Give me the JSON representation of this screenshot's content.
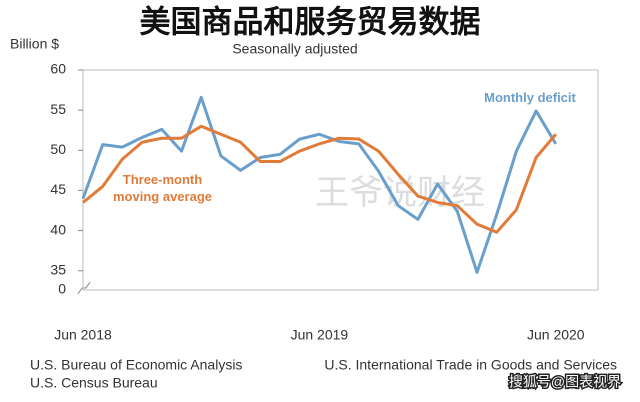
{
  "chart_data": {
    "type": "line",
    "title": "美国商品和服务贸易数据",
    "subtitle": "Seasonally adjusted",
    "y_label": "Billion $",
    "axis_break": {
      "label": "0"
    },
    "categories": [
      "Jun 2018",
      null,
      null,
      null,
      null,
      null,
      null,
      null,
      null,
      null,
      null,
      null,
      "Jun 2019",
      null,
      null,
      null,
      null,
      null,
      null,
      null,
      null,
      null,
      null,
      null,
      "Jun 2020"
    ],
    "series": [
      {
        "name": "Monthly deficit",
        "color": "#6a9fcc",
        "values": [
          44,
          50.7,
          50.4,
          51.6,
          52.6,
          49.9,
          56.6,
          49.3,
          47.5,
          49.1,
          49.5,
          51.4,
          52,
          51.1,
          50.8,
          47.4,
          43.1,
          41.4,
          45.8,
          42.4,
          34.8,
          42,
          49.9,
          54.9,
          50.8
        ]
      },
      {
        "name": "Three-month moving average",
        "color": "#e07b39",
        "values": [
          43.5,
          45.5,
          48.9,
          51,
          51.5,
          51.5,
          53,
          52,
          51,
          48.6,
          48.6,
          49.9,
          50.8,
          51.5,
          51.4,
          49.9,
          47,
          44.3,
          43.5,
          43.1,
          40.8,
          39.8,
          42.6,
          49.1,
          52
        ]
      }
    ],
    "ylim": [
      32.6,
      60
    ],
    "yticks": [
      35,
      40,
      45,
      50,
      55,
      60
    ],
    "sources": [
      "U.S. Bureau of Economic Analysis",
      "U.S. Census Bureau",
      "U.S. International Trade in Goods and Services"
    ],
    "watermarks": [
      "王爷说财经",
      "搜狐号@图表视界"
    ]
  }
}
